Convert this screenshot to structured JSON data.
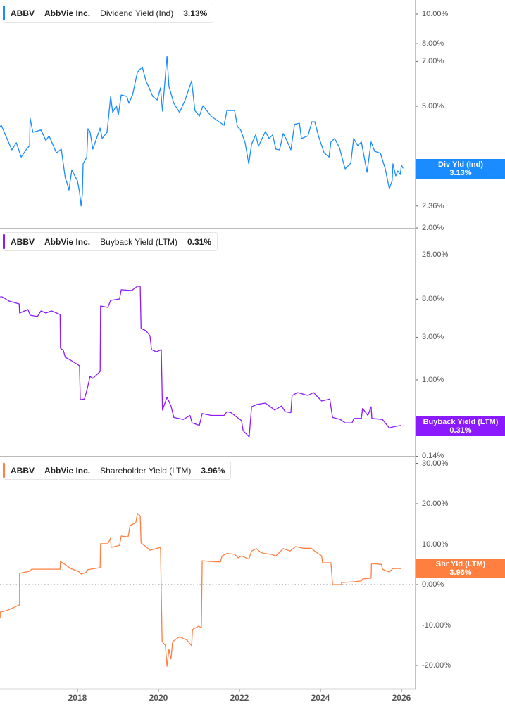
{
  "chart_data": [
    {
      "type": "line",
      "ticker": "ABBV",
      "company": "AbbVie Inc.",
      "metric": "Dividend Yield (Ind)",
      "current_value": "3.13%",
      "value_label": {
        "title": "Div Yld (Ind)",
        "value": "3.13%"
      },
      "color": "#1a8cff",
      "y_scale": "log",
      "ylim": [
        2.0,
        10.0
      ],
      "y_ticks": [
        {
          "value": 10,
          "label": "10.00%"
        },
        {
          "value": 8,
          "label": "8.00%"
        },
        {
          "value": 7,
          "label": "7.00%"
        },
        {
          "value": 5,
          "label": "5.00%"
        },
        {
          "value": 3,
          "label": "3.00%"
        },
        {
          "value": 2.36,
          "label": "2.36%"
        },
        {
          "value": 2,
          "label": "2.00%"
        }
      ],
      "points": [
        [
          2016.09,
          4.29
        ],
        [
          2016.12,
          4.33
        ],
        [
          2016.23,
          4.0
        ],
        [
          2016.38,
          3.6
        ],
        [
          2016.49,
          3.8
        ],
        [
          2016.61,
          3.41
        ],
        [
          2016.73,
          3.6
        ],
        [
          2016.82,
          3.72
        ],
        [
          2016.83,
          4.57
        ],
        [
          2016.9,
          4.11
        ],
        [
          2017.1,
          4.18
        ],
        [
          2017.22,
          3.86
        ],
        [
          2017.3,
          4.0
        ],
        [
          2017.48,
          3.52
        ],
        [
          2017.6,
          3.62
        ],
        [
          2017.7,
          2.91
        ],
        [
          2017.74,
          2.81
        ],
        [
          2017.79,
          2.66
        ],
        [
          2017.86,
          3.09
        ],
        [
          2018.0,
          2.85
        ],
        [
          2018.05,
          2.62
        ],
        [
          2018.09,
          2.36
        ],
        [
          2018.12,
          2.57
        ],
        [
          2018.14,
          3.24
        ],
        [
          2018.23,
          3.41
        ],
        [
          2018.26,
          4.22
        ],
        [
          2018.31,
          4.13
        ],
        [
          2018.38,
          3.62
        ],
        [
          2018.47,
          3.92
        ],
        [
          2018.56,
          4.24
        ],
        [
          2018.61,
          3.92
        ],
        [
          2018.73,
          4.11
        ],
        [
          2018.82,
          5.38
        ],
        [
          2018.87,
          4.77
        ],
        [
          2018.96,
          5.02
        ],
        [
          2019.01,
          4.69
        ],
        [
          2019.08,
          5.44
        ],
        [
          2019.22,
          5.38
        ],
        [
          2019.27,
          5.11
        ],
        [
          2019.36,
          5.44
        ],
        [
          2019.48,
          6.45
        ],
        [
          2019.6,
          6.72
        ],
        [
          2019.69,
          6.05
        ],
        [
          2019.77,
          5.74
        ],
        [
          2019.86,
          5.38
        ],
        [
          2019.97,
          5.24
        ],
        [
          2020.05,
          5.74
        ],
        [
          2020.1,
          4.82
        ],
        [
          2020.21,
          7.28
        ],
        [
          2020.26,
          5.8
        ],
        [
          2020.38,
          5.11
        ],
        [
          2020.52,
          4.77
        ],
        [
          2020.66,
          5.24
        ],
        [
          2020.82,
          6.05
        ],
        [
          2020.9,
          4.84
        ],
        [
          2021.01,
          4.64
        ],
        [
          2021.1,
          5.02
        ],
        [
          2021.3,
          4.64
        ],
        [
          2021.62,
          4.33
        ],
        [
          2021.69,
          4.84
        ],
        [
          2021.88,
          4.84
        ],
        [
          2021.95,
          4.29
        ],
        [
          2022.03,
          4.18
        ],
        [
          2022.14,
          3.8
        ],
        [
          2022.23,
          3.24
        ],
        [
          2022.3,
          3.76
        ],
        [
          2022.4,
          4.03
        ],
        [
          2022.47,
          3.7
        ],
        [
          2022.64,
          4.13
        ],
        [
          2022.73,
          3.92
        ],
        [
          2022.82,
          4.03
        ],
        [
          2022.9,
          3.62
        ],
        [
          2022.99,
          3.6
        ],
        [
          2023.08,
          4.07
        ],
        [
          2023.17,
          3.86
        ],
        [
          2023.27,
          3.6
        ],
        [
          2023.36,
          4.36
        ],
        [
          2023.48,
          4.4
        ],
        [
          2023.53,
          3.92
        ],
        [
          2023.69,
          4.0
        ],
        [
          2023.79,
          4.45
        ],
        [
          2023.86,
          4.45
        ],
        [
          2023.95,
          4.0
        ],
        [
          2024.09,
          3.52
        ],
        [
          2024.21,
          3.41
        ],
        [
          2024.26,
          3.82
        ],
        [
          2024.35,
          3.92
        ],
        [
          2024.47,
          3.66
        ],
        [
          2024.56,
          3.29
        ],
        [
          2024.61,
          3.12
        ],
        [
          2024.75,
          3.26
        ],
        [
          2024.82,
          3.92
        ],
        [
          2024.92,
          3.72
        ],
        [
          2025.01,
          3.82
        ],
        [
          2025.08,
          3.41
        ],
        [
          2025.15,
          3.04
        ],
        [
          2025.25,
          3.82
        ],
        [
          2025.34,
          3.56
        ],
        [
          2025.48,
          3.51
        ],
        [
          2025.6,
          3.12
        ],
        [
          2025.7,
          2.69
        ],
        [
          2025.77,
          2.85
        ],
        [
          2025.79,
          3.24
        ],
        [
          2025.86,
          2.96
        ],
        [
          2025.91,
          3.07
        ],
        [
          2025.97,
          2.99
        ],
        [
          2026.0,
          3.21
        ],
        [
          2026.04,
          3.13
        ]
      ]
    },
    {
      "type": "line",
      "ticker": "ABBV",
      "company": "AbbVie Inc.",
      "metric": "Buyback Yield (LTM)",
      "current_value": "0.31%",
      "value_label": {
        "title": "Buyback Yield (LTM)",
        "value": "0.31%"
      },
      "color": "#8c1aff",
      "y_scale": "log",
      "ylim": [
        0.14,
        25.0
      ],
      "y_ticks": [
        {
          "value": 25,
          "label": "25.00%"
        },
        {
          "value": 8,
          "label": "8.00%"
        },
        {
          "value": 3,
          "label": "3.00%"
        },
        {
          "value": 1,
          "label": "1.00%"
        },
        {
          "value": 0.14,
          "label": "0.14%"
        }
      ],
      "points": [
        [
          2016.09,
          8.49
        ],
        [
          2016.14,
          8.49
        ],
        [
          2016.31,
          7.62
        ],
        [
          2016.56,
          7.08
        ],
        [
          2016.57,
          5.6
        ],
        [
          2016.78,
          6.13
        ],
        [
          2016.83,
          5.3
        ],
        [
          2017.01,
          5.11
        ],
        [
          2017.1,
          5.91
        ],
        [
          2017.22,
          5.6
        ],
        [
          2017.36,
          5.91
        ],
        [
          2017.57,
          5.4
        ],
        [
          2017.58,
          2.26
        ],
        [
          2017.65,
          2.14
        ],
        [
          2017.7,
          1.79
        ],
        [
          2017.83,
          1.66
        ],
        [
          2018.05,
          1.44
        ],
        [
          2018.07,
          0.6
        ],
        [
          2018.17,
          0.61
        ],
        [
          2018.24,
          0.79
        ],
        [
          2018.31,
          1.09
        ],
        [
          2018.38,
          1.04
        ],
        [
          2018.56,
          1.24
        ],
        [
          2018.57,
          6.71
        ],
        [
          2018.75,
          6.47
        ],
        [
          2018.82,
          7.76
        ],
        [
          2019.04,
          8.05
        ],
        [
          2019.08,
          10.2
        ],
        [
          2019.34,
          10.0
        ],
        [
          2019.48,
          11.15
        ],
        [
          2019.55,
          11.15
        ],
        [
          2019.57,
          3.76
        ],
        [
          2019.69,
          3.56
        ],
        [
          2019.79,
          3.13
        ],
        [
          2019.83,
          2.18
        ],
        [
          2019.95,
          2.06
        ],
        [
          2020.07,
          2.18
        ],
        [
          2020.1,
          0.46
        ],
        [
          2020.21,
          0.64
        ],
        [
          2020.31,
          0.51
        ],
        [
          2020.38,
          0.38
        ],
        [
          2020.61,
          0.36
        ],
        [
          2020.78,
          0.4
        ],
        [
          2020.83,
          0.33
        ],
        [
          2021.01,
          0.31
        ],
        [
          2021.08,
          0.42
        ],
        [
          2021.3,
          0.4
        ],
        [
          2021.62,
          0.4
        ],
        [
          2021.69,
          0.44
        ],
        [
          2021.79,
          0.43
        ],
        [
          2021.91,
          0.39
        ],
        [
          2022.05,
          0.35
        ],
        [
          2022.09,
          0.27
        ],
        [
          2022.24,
          0.23
        ],
        [
          2022.3,
          0.5
        ],
        [
          2022.43,
          0.53
        ],
        [
          2022.64,
          0.55
        ],
        [
          2022.87,
          0.46
        ],
        [
          2023.04,
          0.51
        ],
        [
          2023.13,
          0.44
        ],
        [
          2023.27,
          0.43
        ],
        [
          2023.3,
          0.67
        ],
        [
          2023.44,
          0.72
        ],
        [
          2023.69,
          0.67
        ],
        [
          2023.83,
          0.72
        ],
        [
          2024.03,
          0.58
        ],
        [
          2024.23,
          0.61
        ],
        [
          2024.3,
          0.38
        ],
        [
          2024.49,
          0.36
        ],
        [
          2024.61,
          0.33
        ],
        [
          2024.78,
          0.33
        ],
        [
          2024.83,
          0.37
        ],
        [
          2025.01,
          0.37
        ],
        [
          2025.04,
          0.48
        ],
        [
          2025.17,
          0.4
        ],
        [
          2025.25,
          0.5
        ],
        [
          2025.27,
          0.37
        ],
        [
          2025.53,
          0.36
        ],
        [
          2025.7,
          0.29
        ],
        [
          2025.83,
          0.3
        ],
        [
          2026.0,
          0.31
        ]
      ]
    },
    {
      "type": "line",
      "ticker": "ABBV",
      "company": "AbbVie Inc.",
      "metric": "Shareholder Yield (LTM)",
      "current_value": "3.96%",
      "value_label": {
        "title": "Shr Yld (LTM)",
        "value": "3.96%"
      },
      "color": "#ff7f41",
      "y_scale": "linear",
      "ylim": [
        -22,
        30
      ],
      "zero_line": true,
      "y_ticks": [
        {
          "value": 30,
          "label": "30.00%"
        },
        {
          "value": 20,
          "label": "20.00%"
        },
        {
          "value": 10,
          "label": "10.00%"
        },
        {
          "value": 0,
          "label": "0.00%"
        },
        {
          "value": -10,
          "label": "-10.00%"
        },
        {
          "value": -20,
          "label": "-20.00%"
        }
      ],
      "points": [
        [
          2016.09,
          -8.2
        ],
        [
          2016.09,
          -6.8
        ],
        [
          2016.26,
          -6.4
        ],
        [
          2016.44,
          -5.6
        ],
        [
          2016.57,
          -5.0
        ],
        [
          2016.57,
          2.8
        ],
        [
          2016.82,
          3.3
        ],
        [
          2016.87,
          3.8
        ],
        [
          2017.3,
          3.8
        ],
        [
          2017.57,
          3.8
        ],
        [
          2017.58,
          5.7
        ],
        [
          2017.69,
          5.0
        ],
        [
          2017.83,
          4.0
        ],
        [
          2018.05,
          3.1
        ],
        [
          2018.09,
          2.6
        ],
        [
          2018.21,
          3.0
        ],
        [
          2018.26,
          3.7
        ],
        [
          2018.56,
          4.2
        ],
        [
          2018.57,
          10.1
        ],
        [
          2018.75,
          10.1
        ],
        [
          2018.82,
          11.5
        ],
        [
          2018.83,
          9.2
        ],
        [
          2019.04,
          9.7
        ],
        [
          2019.08,
          12.0
        ],
        [
          2019.25,
          11.8
        ],
        [
          2019.3,
          14.6
        ],
        [
          2019.44,
          15.3
        ],
        [
          2019.48,
          17.6
        ],
        [
          2019.55,
          17.0
        ],
        [
          2019.57,
          10.3
        ],
        [
          2019.69,
          9.4
        ],
        [
          2019.79,
          8.5
        ],
        [
          2020.05,
          9.2
        ],
        [
          2020.09,
          -14.1
        ],
        [
          2020.17,
          -15.0
        ],
        [
          2020.21,
          -20.2
        ],
        [
          2020.26,
          -16.0
        ],
        [
          2020.31,
          -18.4
        ],
        [
          2020.35,
          -14.1
        ],
        [
          2020.52,
          -12.9
        ],
        [
          2020.7,
          -13.7
        ],
        [
          2020.82,
          -15.1
        ],
        [
          2020.84,
          -11.1
        ],
        [
          2020.99,
          -10.3
        ],
        [
          2021.06,
          -10.6
        ],
        [
          2021.08,
          5.9
        ],
        [
          2021.3,
          5.7
        ],
        [
          2021.53,
          5.6
        ],
        [
          2021.57,
          7.1
        ],
        [
          2021.69,
          7.7
        ],
        [
          2021.88,
          7.5
        ],
        [
          2021.97,
          6.6
        ],
        [
          2022.05,
          7.1
        ],
        [
          2022.23,
          6.3
        ],
        [
          2022.3,
          8.3
        ],
        [
          2022.42,
          8.9
        ],
        [
          2022.52,
          8.0
        ],
        [
          2022.61,
          7.7
        ],
        [
          2022.78,
          7.5
        ],
        [
          2022.9,
          7.1
        ],
        [
          2023.08,
          8.9
        ],
        [
          2023.25,
          8.3
        ],
        [
          2023.39,
          9.4
        ],
        [
          2023.57,
          9.0
        ],
        [
          2023.77,
          9.0
        ],
        [
          2023.83,
          8.5
        ],
        [
          2023.97,
          7.5
        ],
        [
          2024.03,
          7.1
        ],
        [
          2024.05,
          5.4
        ],
        [
          2024.26,
          5.4
        ],
        [
          2024.3,
          0.0
        ],
        [
          2024.52,
          0.0
        ],
        [
          2024.52,
          0.5
        ],
        [
          2024.82,
          0.7
        ],
        [
          2025.01,
          0.9
        ],
        [
          2025.04,
          1.4
        ],
        [
          2025.25,
          1.6
        ],
        [
          2025.26,
          5.2
        ],
        [
          2025.51,
          5.0
        ],
        [
          2025.53,
          3.8
        ],
        [
          2025.7,
          3.1
        ],
        [
          2025.79,
          4.0
        ],
        [
          2026.0,
          3.96
        ]
      ]
    }
  ],
  "x_axis": {
    "xlim": [
      2016.09,
      2026.35
    ],
    "ticks": [
      {
        "value": 2018,
        "label": "2018"
      },
      {
        "value": 2020,
        "label": "2020"
      },
      {
        "value": 2022,
        "label": "2022"
      },
      {
        "value": 2024,
        "label": "2024"
      },
      {
        "value": 2026,
        "label": "2026"
      }
    ]
  }
}
